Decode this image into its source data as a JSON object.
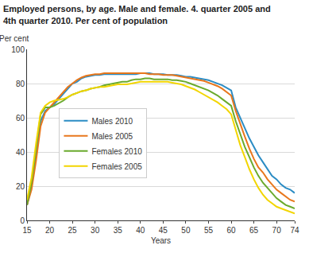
{
  "chart_data": {
    "type": "line",
    "title": [
      "Employed persons, by age. Male and female. 4. quarter 2005 and",
      "4th quarter 2010. Per cent of population"
    ],
    "y_label": "Per cent",
    "x_label": "Years",
    "x": [
      15,
      16,
      17,
      18,
      19,
      20,
      21,
      22,
      23,
      24,
      25,
      26,
      27,
      28,
      29,
      30,
      31,
      32,
      33,
      34,
      35,
      36,
      37,
      38,
      39,
      40,
      41,
      42,
      43,
      44,
      45,
      46,
      47,
      48,
      49,
      50,
      51,
      52,
      53,
      54,
      55,
      56,
      57,
      58,
      59,
      60,
      61,
      62,
      63,
      64,
      65,
      66,
      67,
      68,
      69,
      70,
      71,
      72,
      73,
      74
    ],
    "series": [
      {
        "name": "Males 2010",
        "color": "#2b8cc4",
        "values": [
          9,
          20,
          40,
          58,
          64,
          66,
          68,
          71,
          74,
          77,
          80,
          81,
          83,
          84,
          84.5,
          85,
          85,
          85.5,
          85.5,
          85.5,
          85.5,
          85.5,
          85.5,
          85.5,
          85.5,
          86,
          86,
          86,
          85.5,
          85.5,
          85.5,
          85,
          85,
          85,
          84.5,
          84,
          84,
          83.5,
          83,
          82.5,
          82,
          81,
          80,
          79,
          77.5,
          76,
          66,
          60,
          54,
          48,
          43,
          38,
          34,
          30,
          26,
          24,
          21,
          19,
          18,
          16
        ]
      },
      {
        "name": "Males 2005",
        "color": "#e8771c",
        "values": [
          9,
          18,
          35,
          55,
          63,
          66,
          69,
          72,
          75,
          78,
          80,
          82,
          83.5,
          84.5,
          85,
          85.5,
          85.5,
          86,
          86,
          86,
          86,
          86,
          86,
          86,
          86,
          86,
          86,
          85.5,
          85.5,
          85.5,
          85,
          85,
          85,
          84.5,
          84,
          83.5,
          83,
          82.5,
          82,
          81.5,
          80.5,
          79.5,
          78.5,
          77,
          75,
          73,
          64,
          56,
          49,
          42,
          36,
          31,
          28,
          24,
          21,
          18,
          16,
          14,
          12,
          11
        ]
      },
      {
        "name": "Females 2010",
        "color": "#6aaa2d",
        "values": [
          9,
          22,
          42,
          62,
          66,
          66,
          67,
          68.5,
          70,
          72,
          73.5,
          74.5,
          75.5,
          76,
          77,
          77.5,
          78,
          79,
          79.5,
          80,
          80.5,
          81,
          81,
          82,
          82.5,
          82.5,
          83,
          83,
          82.5,
          82.5,
          82.5,
          82.5,
          82,
          82,
          81.5,
          81,
          80,
          79,
          78,
          77,
          76,
          74.5,
          73,
          71,
          69,
          67,
          58,
          50,
          43,
          37,
          31,
          26,
          22,
          19,
          16,
          13,
          11,
          9,
          8,
          7
        ]
      },
      {
        "name": "Females 2005",
        "color": "#f2d500",
        "values": [
          12,
          25,
          45,
          63,
          67,
          69,
          70,
          70.5,
          71,
          72,
          73.5,
          74.5,
          75.5,
          76,
          77,
          77.5,
          78,
          78,
          78.5,
          79,
          79.5,
          79.5,
          79.5,
          80,
          80.5,
          81,
          81,
          81,
          81,
          81,
          81,
          81,
          80.5,
          80,
          79.5,
          78.5,
          77.5,
          76.5,
          75,
          73.5,
          72,
          70.5,
          69,
          67,
          65,
          62,
          53,
          44,
          37,
          30,
          24,
          19,
          15,
          12,
          10,
          8,
          7,
          6,
          5,
          4
        ]
      }
    ],
    "xlim": [
      15,
      74
    ],
    "xticks": [
      15,
      20,
      25,
      30,
      35,
      40,
      45,
      50,
      55,
      60,
      65,
      70,
      74
    ],
    "ylim": [
      0,
      100
    ],
    "yticks": [
      0,
      20,
      40,
      60,
      80,
      100
    ],
    "grid": true,
    "legend": "left"
  }
}
